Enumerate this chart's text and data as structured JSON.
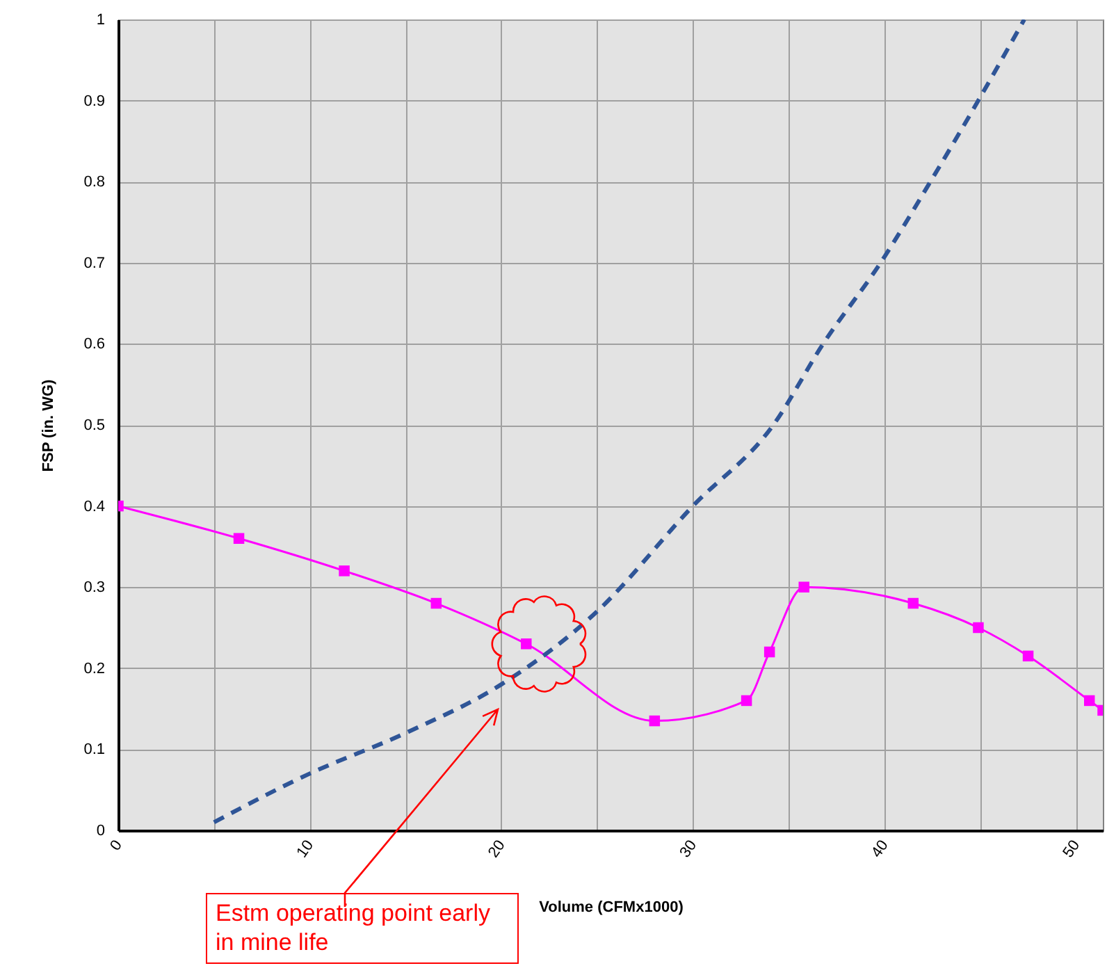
{
  "chart_data": {
    "type": "line",
    "xlabel": "Volume (CFMx1000)",
    "ylabel": "FSP (in. WG)",
    "xlim": [
      0,
      51.4
    ],
    "xticks": [
      0,
      {
        "value": 5,
        "label": null
      },
      10,
      {
        "value": 15,
        "label": null
      },
      20,
      {
        "value": 25,
        "label": null
      },
      30,
      {
        "value": 35,
        "label": null
      },
      40,
      {
        "value": 45,
        "label": null
      },
      50
    ],
    "ylim": [
      0,
      1
    ],
    "yticks": [
      0,
      0.1,
      0.2,
      0.3,
      0.4,
      0.5,
      0.6,
      0.7,
      0.8,
      0.9,
      1
    ],
    "grid": true,
    "legend": false,
    "series": [
      {
        "color": "#ff00ff",
        "marker": "square",
        "line_style": "solid",
        "x": [
          0,
          6.3,
          11.8,
          16.6,
          21.3,
          28,
          32.8,
          34,
          35.8,
          41.5,
          44.9,
          47.5,
          50.7,
          51.4
        ],
        "values": [
          0.4,
          0.36,
          0.32,
          0.28,
          0.23,
          0.135,
          0.16,
          0.22,
          0.3,
          0.28,
          0.25,
          0.215,
          0.16,
          0.148
        ]
      },
      {
        "color": "#2f5597",
        "marker": "none",
        "line_style": "dashed",
        "x": [
          5,
          10,
          15,
          20,
          25,
          30,
          34.2,
          36.8,
          39.8,
          42.4,
          44.9,
          47.3
        ],
        "values": [
          0.01,
          0.07,
          0.12,
          0.18,
          0.27,
          0.4,
          0.5,
          0.6,
          0.7,
          0.8,
          0.9,
          1.0
        ]
      }
    ],
    "annotations": [
      "Estm operating point early in mine life"
    ]
  }
}
